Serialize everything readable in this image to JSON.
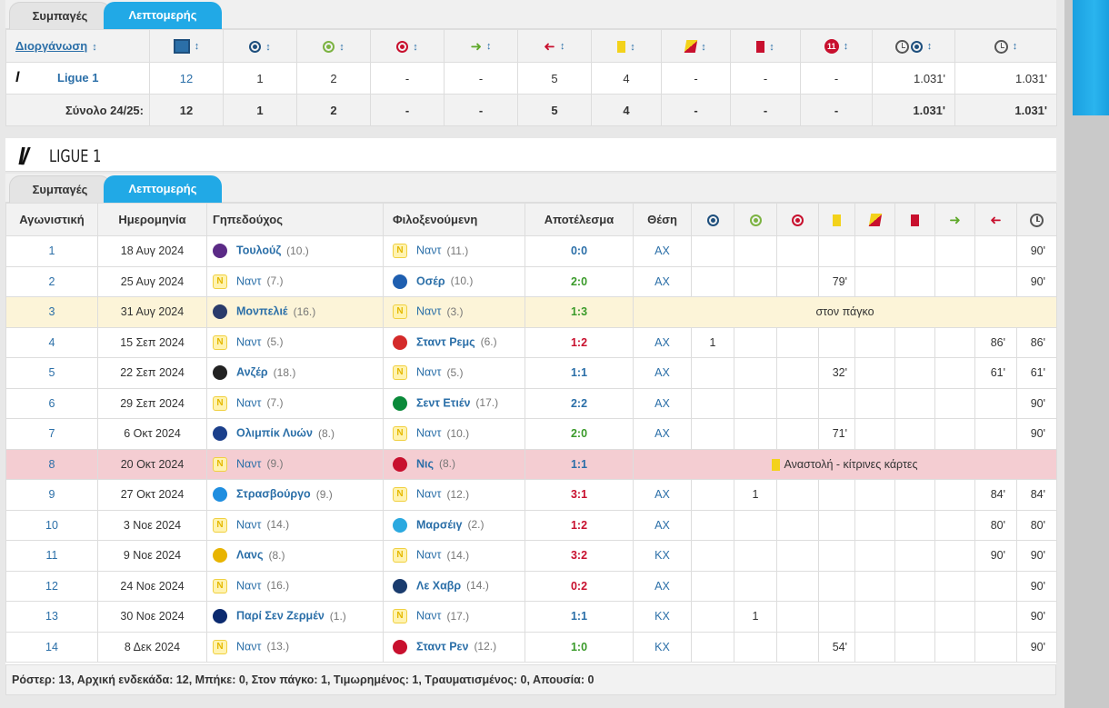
{
  "tabs": {
    "compact": "Συμπαγές",
    "detailed": "Λεπτομερής"
  },
  "summary": {
    "competition_header": "Διοργάνωση",
    "rows": [
      {
        "competition": "Ligue 1",
        "vals": [
          "12",
          "1",
          "2",
          "-",
          "-",
          "5",
          "4",
          "-",
          "-",
          "-",
          "1.031'",
          "1.031'"
        ]
      }
    ],
    "total": {
      "label": "Σύνολο 24/25:",
      "vals": [
        "12",
        "1",
        "2",
        "-",
        "-",
        "5",
        "4",
        "-",
        "-",
        "-",
        "1.031'",
        "1.031'"
      ]
    }
  },
  "section": {
    "title": "LIGUE 1"
  },
  "matches_header": {
    "matchday": "Αγωνιστική",
    "date": "Ημερομηνία",
    "home": "Γηπεδούχος",
    "away": "Φιλοξενούμενη",
    "result": "Αποτέλεσμα",
    "position": "Θέση"
  },
  "matches": [
    {
      "md": "1",
      "date": "18 Αυγ 2024",
      "home": "Τουλούζ",
      "hpos": "(10.)",
      "hcrest": "toulouse",
      "away": "Ναντ",
      "apos": "(11.)",
      "acrest": "nantes",
      "res": "0:0",
      "rtype": "draw",
      "bold": "home",
      "pos": "AX",
      "goals": "",
      "assists": "",
      "own": "",
      "y": "",
      "yr": "",
      "r": "",
      "in": "",
      "out": "",
      "min": "90'"
    },
    {
      "md": "2",
      "date": "25 Αυγ 2024",
      "home": "Ναντ",
      "hpos": "(7.)",
      "hcrest": "nantes",
      "away": "Οσέρ",
      "apos": "(10.)",
      "acrest": "auxerre",
      "res": "2:0",
      "rtype": "win",
      "bold": "away",
      "pos": "AX",
      "goals": "",
      "assists": "",
      "own": "",
      "y": "79'",
      "yr": "",
      "r": "",
      "in": "",
      "out": "",
      "min": "90'"
    },
    {
      "md": "3",
      "date": "31 Αυγ 2024",
      "home": "Μονπελιέ",
      "hpos": "(16.)",
      "hcrest": "montpellier",
      "away": "Ναντ",
      "apos": "(3.)",
      "acrest": "nantes",
      "res": "1:3",
      "rtype": "win",
      "bold": "home",
      "note": "στον πάγκο",
      "kind": "bench"
    },
    {
      "md": "4",
      "date": "15 Σεπ 2024",
      "home": "Ναντ",
      "hpos": "(5.)",
      "hcrest": "nantes",
      "away": "Σταντ Ρεμς",
      "apos": "(6.)",
      "acrest": "reims",
      "res": "1:2",
      "rtype": "loss",
      "bold": "away",
      "pos": "AX",
      "goals": "1",
      "assists": "",
      "own": "",
      "y": "",
      "yr": "",
      "r": "",
      "in": "",
      "out": "86'",
      "min": "86'"
    },
    {
      "md": "5",
      "date": "22 Σεπ 2024",
      "home": "Ανζέρ",
      "hpos": "(18.)",
      "hcrest": "angers",
      "away": "Ναντ",
      "apos": "(5.)",
      "acrest": "nantes",
      "res": "1:1",
      "rtype": "draw",
      "bold": "home",
      "pos": "AX",
      "goals": "",
      "assists": "",
      "own": "",
      "y": "32'",
      "yr": "",
      "r": "",
      "in": "",
      "out": "61'",
      "min": "61'"
    },
    {
      "md": "6",
      "date": "29 Σεπ 2024",
      "home": "Ναντ",
      "hpos": "(7.)",
      "hcrest": "nantes",
      "away": "Σεντ Ετιέν",
      "apos": "(17.)",
      "acrest": "stetienne",
      "res": "2:2",
      "rtype": "draw",
      "bold": "away",
      "pos": "AX",
      "goals": "",
      "assists": "",
      "own": "",
      "y": "",
      "yr": "",
      "r": "",
      "in": "",
      "out": "",
      "min": "90'"
    },
    {
      "md": "7",
      "date": "6 Οκτ 2024",
      "home": "Ολιμπίκ Λυών",
      "hpos": "(8.)",
      "hcrest": "lyon",
      "away": "Ναντ",
      "apos": "(10.)",
      "acrest": "nantes",
      "res": "2:0",
      "rtype": "win",
      "bold": "home",
      "pos": "AX",
      "goals": "",
      "assists": "",
      "own": "",
      "y": "71'",
      "yr": "",
      "r": "",
      "in": "",
      "out": "",
      "min": "90'"
    },
    {
      "md": "8",
      "date": "20 Οκτ 2024",
      "home": "Ναντ",
      "hpos": "(9.)",
      "hcrest": "nantes",
      "away": "Νις",
      "apos": "(8.)",
      "acrest": "nice",
      "res": "1:1",
      "rtype": "draw",
      "bold": "away",
      "note": "Αναστολή - κίτρινες κάρτες",
      "kind": "susp"
    },
    {
      "md": "9",
      "date": "27 Οκτ 2024",
      "home": "Στρασβούργο",
      "hpos": "(9.)",
      "hcrest": "strasbourg",
      "away": "Ναντ",
      "apos": "(12.)",
      "acrest": "nantes",
      "res": "3:1",
      "rtype": "loss",
      "bold": "home",
      "pos": "AX",
      "goals": "",
      "assists": "1",
      "own": "",
      "y": "",
      "yr": "",
      "r": "",
      "in": "",
      "out": "84'",
      "min": "84'"
    },
    {
      "md": "10",
      "date": "3 Νοε 2024",
      "home": "Ναντ",
      "hpos": "(14.)",
      "hcrest": "nantes",
      "away": "Μαρσέιγ",
      "apos": "(2.)",
      "acrest": "marseille",
      "res": "1:2",
      "rtype": "loss",
      "bold": "away",
      "pos": "AX",
      "goals": "",
      "assists": "",
      "own": "",
      "y": "",
      "yr": "",
      "r": "",
      "in": "",
      "out": "80'",
      "min": "80'"
    },
    {
      "md": "11",
      "date": "9 Νοε 2024",
      "home": "Λανς",
      "hpos": "(8.)",
      "hcrest": "lens",
      "away": "Ναντ",
      "apos": "(14.)",
      "acrest": "nantes",
      "res": "3:2",
      "rtype": "loss",
      "bold": "home",
      "pos": "KX",
      "goals": "",
      "assists": "",
      "own": "",
      "y": "",
      "yr": "",
      "r": "",
      "in": "",
      "out": "90'",
      "min": "90'"
    },
    {
      "md": "12",
      "date": "24 Νοε 2024",
      "home": "Ναντ",
      "hpos": "(16.)",
      "hcrest": "nantes",
      "away": "Λε Χαβρ",
      "apos": "(14.)",
      "acrest": "lehavre",
      "res": "0:2",
      "rtype": "loss",
      "bold": "away",
      "pos": "AX",
      "goals": "",
      "assists": "",
      "own": "",
      "y": "",
      "yr": "",
      "r": "",
      "in": "",
      "out": "",
      "min": "90'"
    },
    {
      "md": "13",
      "date": "30 Νοε 2024",
      "home": "Παρί Σεν Ζερμέν",
      "hpos": "(1.)",
      "hcrest": "psg",
      "away": "Ναντ",
      "apos": "(17.)",
      "acrest": "nantes",
      "res": "1:1",
      "rtype": "draw",
      "bold": "home",
      "pos": "KX",
      "goals": "",
      "assists": "1",
      "own": "",
      "y": "",
      "yr": "",
      "r": "",
      "in": "",
      "out": "",
      "min": "90'"
    },
    {
      "md": "14",
      "date": "8 Δεκ 2024",
      "home": "Ναντ",
      "hpos": "(13.)",
      "hcrest": "nantes",
      "away": "Σταντ Ρεν",
      "apos": "(12.)",
      "acrest": "rennes",
      "res": "1:0",
      "rtype": "win",
      "bold": "away",
      "pos": "KX",
      "goals": "",
      "assists": "",
      "own": "",
      "y": "54'",
      "yr": "",
      "r": "",
      "in": "",
      "out": "",
      "min": "90'"
    }
  ],
  "crest_colors": {
    "toulouse": "#5b2a86",
    "auxerre": "#1f5fb0",
    "montpellier": "#2a3b6b",
    "reims": "#d42a2a",
    "angers": "#222222",
    "stetienne": "#0a8a3a",
    "lyon": "#1b3f8b",
    "nice": "#c8102e",
    "strasbourg": "#1f8ee0",
    "marseille": "#2ba9e0",
    "lens": "#e8b400",
    "lehavre": "#1a3c6e",
    "psg": "#0b2a6f",
    "rennes": "#c8102e"
  },
  "footer": "Ρόστερ: 13, Αρχική ενδεκάδα: 12, Μπήκε: 0, Στον πάγκο: 1, Τιμωρημένος: 1, Τραυματισμένος: 0, Απουσία: 0"
}
